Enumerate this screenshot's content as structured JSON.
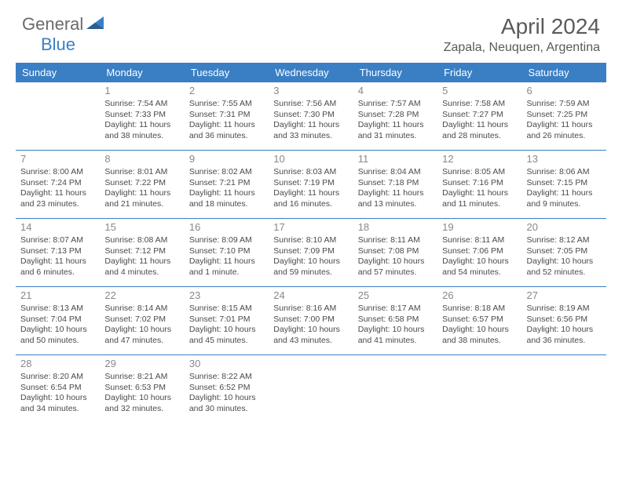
{
  "logo": {
    "text1": "General",
    "text2": "Blue"
  },
  "title": "April 2024",
  "location": "Zapala, Neuquen, Argentina",
  "colors": {
    "header_bg": "#3a7fc4",
    "header_text": "#ffffff",
    "body_text": "#4a4a4a",
    "daynum": "#888888",
    "divider": "#3a7fc4",
    "page_bg": "#ffffff"
  },
  "days_of_week": [
    "Sunday",
    "Monday",
    "Tuesday",
    "Wednesday",
    "Thursday",
    "Friday",
    "Saturday"
  ],
  "weeks": [
    [
      null,
      {
        "n": "1",
        "sr": "7:54 AM",
        "ss": "7:33 PM",
        "dl": "11 hours and 38 minutes."
      },
      {
        "n": "2",
        "sr": "7:55 AM",
        "ss": "7:31 PM",
        "dl": "11 hours and 36 minutes."
      },
      {
        "n": "3",
        "sr": "7:56 AM",
        "ss": "7:30 PM",
        "dl": "11 hours and 33 minutes."
      },
      {
        "n": "4",
        "sr": "7:57 AM",
        "ss": "7:28 PM",
        "dl": "11 hours and 31 minutes."
      },
      {
        "n": "5",
        "sr": "7:58 AM",
        "ss": "7:27 PM",
        "dl": "11 hours and 28 minutes."
      },
      {
        "n": "6",
        "sr": "7:59 AM",
        "ss": "7:25 PM",
        "dl": "11 hours and 26 minutes."
      }
    ],
    [
      {
        "n": "7",
        "sr": "8:00 AM",
        "ss": "7:24 PM",
        "dl": "11 hours and 23 minutes."
      },
      {
        "n": "8",
        "sr": "8:01 AM",
        "ss": "7:22 PM",
        "dl": "11 hours and 21 minutes."
      },
      {
        "n": "9",
        "sr": "8:02 AM",
        "ss": "7:21 PM",
        "dl": "11 hours and 18 minutes."
      },
      {
        "n": "10",
        "sr": "8:03 AM",
        "ss": "7:19 PM",
        "dl": "11 hours and 16 minutes."
      },
      {
        "n": "11",
        "sr": "8:04 AM",
        "ss": "7:18 PM",
        "dl": "11 hours and 13 minutes."
      },
      {
        "n": "12",
        "sr": "8:05 AM",
        "ss": "7:16 PM",
        "dl": "11 hours and 11 minutes."
      },
      {
        "n": "13",
        "sr": "8:06 AM",
        "ss": "7:15 PM",
        "dl": "11 hours and 9 minutes."
      }
    ],
    [
      {
        "n": "14",
        "sr": "8:07 AM",
        "ss": "7:13 PM",
        "dl": "11 hours and 6 minutes."
      },
      {
        "n": "15",
        "sr": "8:08 AM",
        "ss": "7:12 PM",
        "dl": "11 hours and 4 minutes."
      },
      {
        "n": "16",
        "sr": "8:09 AM",
        "ss": "7:10 PM",
        "dl": "11 hours and 1 minute."
      },
      {
        "n": "17",
        "sr": "8:10 AM",
        "ss": "7:09 PM",
        "dl": "10 hours and 59 minutes."
      },
      {
        "n": "18",
        "sr": "8:11 AM",
        "ss": "7:08 PM",
        "dl": "10 hours and 57 minutes."
      },
      {
        "n": "19",
        "sr": "8:11 AM",
        "ss": "7:06 PM",
        "dl": "10 hours and 54 minutes."
      },
      {
        "n": "20",
        "sr": "8:12 AM",
        "ss": "7:05 PM",
        "dl": "10 hours and 52 minutes."
      }
    ],
    [
      {
        "n": "21",
        "sr": "8:13 AM",
        "ss": "7:04 PM",
        "dl": "10 hours and 50 minutes."
      },
      {
        "n": "22",
        "sr": "8:14 AM",
        "ss": "7:02 PM",
        "dl": "10 hours and 47 minutes."
      },
      {
        "n": "23",
        "sr": "8:15 AM",
        "ss": "7:01 PM",
        "dl": "10 hours and 45 minutes."
      },
      {
        "n": "24",
        "sr": "8:16 AM",
        "ss": "7:00 PM",
        "dl": "10 hours and 43 minutes."
      },
      {
        "n": "25",
        "sr": "8:17 AM",
        "ss": "6:58 PM",
        "dl": "10 hours and 41 minutes."
      },
      {
        "n": "26",
        "sr": "8:18 AM",
        "ss": "6:57 PM",
        "dl": "10 hours and 38 minutes."
      },
      {
        "n": "27",
        "sr": "8:19 AM",
        "ss": "6:56 PM",
        "dl": "10 hours and 36 minutes."
      }
    ],
    [
      {
        "n": "28",
        "sr": "8:20 AM",
        "ss": "6:54 PM",
        "dl": "10 hours and 34 minutes."
      },
      {
        "n": "29",
        "sr": "8:21 AM",
        "ss": "6:53 PM",
        "dl": "10 hours and 32 minutes."
      },
      {
        "n": "30",
        "sr": "8:22 AM",
        "ss": "6:52 PM",
        "dl": "10 hours and 30 minutes."
      },
      null,
      null,
      null,
      null
    ]
  ],
  "labels": {
    "sunrise": "Sunrise:",
    "sunset": "Sunset:",
    "daylight": "Daylight:"
  }
}
